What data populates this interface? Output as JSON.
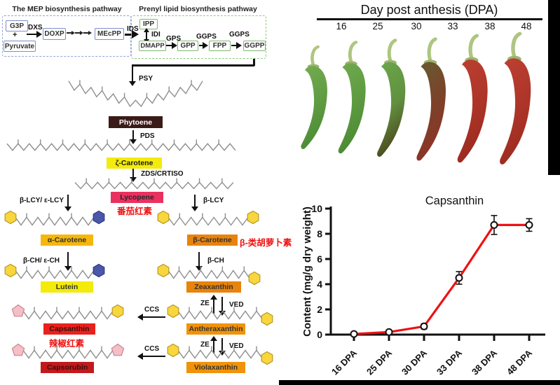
{
  "mep": {
    "title": "The MEP biosynthesis pathway",
    "g3p": "G3P",
    "plus": "+",
    "pyruvate": "Pyruvate",
    "dxs": "DXS",
    "doxp": "DOXP",
    "mecpp": "MEcPP",
    "ids": "IDS",
    "border_color": "#93a4d6",
    "box_border": "#7d8fc4"
  },
  "prenyl": {
    "title": "Prenyl lipid biosynthesis pathway",
    "ipp": "IPP",
    "idi": "IDI",
    "dmapp": "DMAPP",
    "gps": "GPS",
    "gpp": "GPP",
    "ggps1": "GGPS",
    "fpp": "FPP",
    "ggps2": "GGPS",
    "ggpp": "GGPP",
    "border_color": "#8fc97f",
    "box_border": "#7fb86e"
  },
  "enzymes": {
    "psy": "PSY",
    "pds": "PDS",
    "zds_crtiso": "ZDS/CRTISO",
    "lcy_left": "β-LCY/ ε-LCY",
    "lcy_right": "β-LCY",
    "ch_left": "β-CH/ ε-CH",
    "ch_right": "β-CH",
    "ze": "ZE",
    "ved": "VED",
    "ccs": "CCS"
  },
  "compounds": {
    "phytoene": {
      "label": "Phytoene",
      "bg": "#3a1b17",
      "fg": "#ffffff"
    },
    "zeta_carotene": {
      "label": "ζ-Carotene",
      "bg": "#f3eb0c",
      "fg": "#1a1a1a"
    },
    "lycopene": {
      "label": "Lycopene",
      "bg": "#e9315f",
      "fg": "#26262b",
      "annotation": "番茄红素"
    },
    "alpha_carotene": {
      "label": "α-Carotene",
      "bg": "#f6b70b",
      "fg": "#333333"
    },
    "beta_carotene": {
      "label": "β-Carotene",
      "bg": "#e8830c",
      "fg": "#333333",
      "annotation": "β-类胡萝卜素"
    },
    "lutein": {
      "label": "Lutein",
      "bg": "#f3eb0c",
      "fg": "#333333"
    },
    "zeaxanthin": {
      "label": "Zeaxanthin",
      "bg": "#e8830c",
      "fg": "#333333"
    },
    "capsanthin": {
      "label": "Capsanthin",
      "bg": "#e8211d",
      "fg": "#3c0d0d",
      "annotation": "辣椒红素"
    },
    "antheraxanthin": {
      "label": "Antheraxanthin",
      "bg": "#f0930b",
      "fg": "#333333"
    },
    "capsorubin": {
      "label": "Capsorubin",
      "bg": "#c2191d",
      "fg": "#3c0d0d"
    },
    "violaxanthin": {
      "label": "Violaxanthin",
      "bg": "#f0930b",
      "fg": "#333333"
    }
  },
  "annotation_color": "#ee1111",
  "peppers": {
    "title": "Day post anthesis (DPA)",
    "stages": [
      {
        "dpa": "16",
        "top": "#74ad51",
        "mid": "#609c43",
        "bottom": "#4d8c36"
      },
      {
        "dpa": "25",
        "top": "#72ab4f",
        "mid": "#5e9a41",
        "bottom": "#4b8a34"
      },
      {
        "dpa": "30",
        "top": "#6ca74b",
        "mid": "#619140",
        "bottom": "#4d481e"
      },
      {
        "dpa": "33",
        "top": "#655c30",
        "mid": "#7d4129",
        "bottom": "#8c3427"
      },
      {
        "dpa": "38",
        "top": "#bc4032",
        "mid": "#ad3528",
        "bottom": "#9b2a20"
      },
      {
        "dpa": "48",
        "top": "#bd4133",
        "mid": "#ae3529",
        "bottom": "#9e2c21"
      }
    ],
    "stem_color": "#afc581",
    "calyx_color": "#9cb46e"
  },
  "chart_data": {
    "type": "line",
    "title": "Capsanthin",
    "ylabel": "Content (mg/g dry weight)",
    "xlabel": "",
    "categories": [
      "16 DPA",
      "25 DPA",
      "30 DPA",
      "33 DPA",
      "38 DPA",
      "48 DPA"
    ],
    "series": [
      {
        "name": "Capsanthin",
        "values": [
          0.05,
          0.2,
          0.65,
          4.5,
          8.7,
          8.7
        ],
        "errors": [
          0.15,
          0.12,
          0.2,
          0.5,
          0.75,
          0.5
        ],
        "color": "#ee1111"
      }
    ],
    "ylim": [
      0,
      10
    ],
    "yticks": [
      0,
      2,
      4,
      6,
      8,
      10
    ],
    "marker": "open-circle",
    "grid": false,
    "legend": "none"
  }
}
